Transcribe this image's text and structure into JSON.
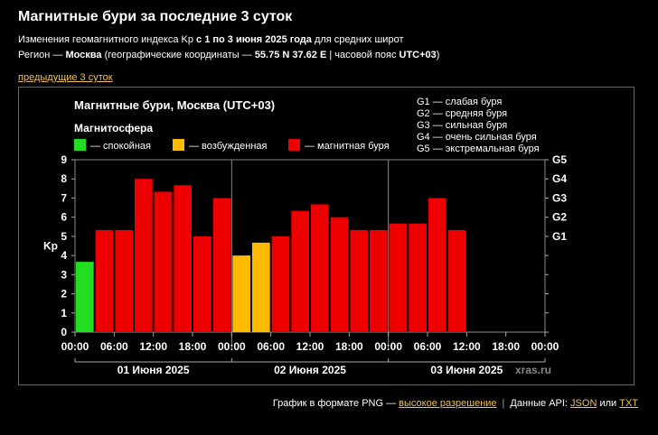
{
  "page": {
    "title": "Магнитные бури за последние 3 суток",
    "sub1_prefix": "Изменения геомагнитного индекса Kp ",
    "sub1_bold": "с 1 по 3 июня 2025 года",
    "sub1_suffix": " для средних широт",
    "sub2_p1": "Регион — ",
    "sub2_city": "Москва",
    "sub2_p2": " (географические координаты — ",
    "sub2_coords": "55.75 N 37.62 E",
    "sub2_p3": " | часовой пояс ",
    "sub2_tz": "UTC+03",
    "sub2_p4": ")",
    "prev_link": "предыдущие 3 суток"
  },
  "footer": {
    "text1": "График в формате PNG — ",
    "link_hi": "высокое разрешение",
    "sep": "|",
    "text2": "Данные API: ",
    "link_json": "JSON",
    "text3": " или ",
    "link_txt": "TXT"
  },
  "chart_data": {
    "type": "bar",
    "title": "Магнитные бури, Москва (UTC+03)",
    "legend_title": "Магнитосфера",
    "legend": [
      {
        "label": "— спокойная",
        "color": "#22dd22"
      },
      {
        "label": "— возбужденная",
        "color": "#ffbb00"
      },
      {
        "label": "— магнитная буря",
        "color": "#ee0000"
      }
    ],
    "storm_legend": [
      "G1 — слабая буря",
      "G2 — средняя буря",
      "G3 — сильная буря",
      "G4 — очень сильная буря",
      "G5 — экстремальная буря"
    ],
    "ylabel": "Kp",
    "ylim": [
      0,
      9
    ],
    "yticks": [
      "0",
      "1",
      "2",
      "3",
      "4",
      "5",
      "6",
      "7",
      "8",
      "9"
    ],
    "g_ticks": [
      {
        "label": "G1",
        "kp": 5
      },
      {
        "label": "G2",
        "kp": 6
      },
      {
        "label": "G3",
        "kp": 7
      },
      {
        "label": "G4",
        "kp": 8
      },
      {
        "label": "G5",
        "kp": 9
      }
    ],
    "xticks": [
      "00:00",
      "06:00",
      "12:00",
      "18:00",
      "00:00",
      "06:00",
      "12:00",
      "18:00",
      "00:00",
      "06:00",
      "12:00",
      "18:00",
      "00:00"
    ],
    "days": [
      "01 Июня 2025",
      "02 Июня 2025",
      "03 Июня 2025"
    ],
    "values": [
      3.67,
      5.33,
      5.33,
      8.0,
      7.33,
      7.67,
      5.0,
      7.0,
      4.0,
      4.67,
      5.0,
      6.33,
      6.67,
      6.0,
      5.33,
      5.33,
      5.67,
      5.67,
      7.0,
      5.33
    ],
    "colors": {
      "quiet": "#22dd22",
      "active": "#ffbb00",
      "storm": "#ee0000"
    },
    "watermark": "xras.ru"
  }
}
